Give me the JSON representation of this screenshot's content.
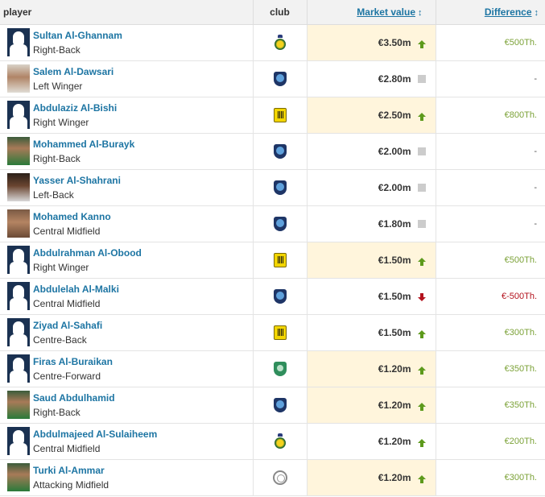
{
  "header": {
    "player": "player",
    "club": "club",
    "market_value": "Market value",
    "difference": "Difference",
    "sort_glyph": "↕"
  },
  "colors": {
    "link": "#1d75a3",
    "highlight": "#fff5dc",
    "up": "#5d9a1c",
    "down": "#b3121d",
    "positive_diff": "#7ca238"
  },
  "rows": [
    {
      "name": "Sultan Al-Ghannam",
      "position": "Right-Back",
      "photo": "silhouette",
      "club": "al-nassr-crest-icon",
      "value": "€3.50m",
      "trend": "up",
      "difference": "€500Th.",
      "diff_type": "pos",
      "highlight": true
    },
    {
      "name": "Salem Al-Dawsari",
      "position": "Left Winger",
      "photo": "light",
      "club": "al-hilal-crest-icon",
      "value": "€2.80m",
      "trend": "same",
      "difference": "-",
      "diff_type": "none",
      "highlight": false
    },
    {
      "name": "Abdulaziz Al-Bishi",
      "position": "Right Winger",
      "photo": "silhouette",
      "club": "al-ittihad-crest-icon",
      "value": "€2.50m",
      "trend": "up",
      "difference": "€800Th.",
      "diff_type": "pos",
      "highlight": true
    },
    {
      "name": "Mohammed Al-Burayk",
      "position": "Right-Back",
      "photo": "green",
      "club": "al-hilal-crest-icon",
      "value": "€2.00m",
      "trend": "same",
      "difference": "-",
      "diff_type": "none",
      "highlight": false
    },
    {
      "name": "Yasser Al-Shahrani",
      "position": "Left-Back",
      "photo": "dark",
      "club": "al-hilal-crest-icon",
      "value": "€2.00m",
      "trend": "same",
      "difference": "-",
      "diff_type": "none",
      "highlight": false
    },
    {
      "name": "Mohamed Kanno",
      "position": "Central Midfield",
      "photo": "real",
      "club": "al-hilal-crest-icon",
      "value": "€1.80m",
      "trend": "same",
      "difference": "-",
      "diff_type": "none",
      "highlight": false
    },
    {
      "name": "Abdulrahman Al-Obood",
      "position": "Right Winger",
      "photo": "silhouette",
      "club": "al-ittihad-crest-icon",
      "value": "€1.50m",
      "trend": "up",
      "difference": "€500Th.",
      "diff_type": "pos",
      "highlight": true
    },
    {
      "name": "Abdulelah Al-Malki",
      "position": "Central Midfield",
      "photo": "silhouette",
      "club": "al-hilal-crest-icon",
      "value": "€1.50m",
      "trend": "down",
      "difference": "€-500Th.",
      "diff_type": "neg",
      "highlight": false
    },
    {
      "name": "Ziyad Al-Sahafi",
      "position": "Centre-Back",
      "photo": "silhouette",
      "club": "al-ittihad-crest-icon",
      "value": "€1.50m",
      "trend": "up",
      "difference": "€300Th.",
      "diff_type": "pos",
      "highlight": false
    },
    {
      "name": "Firas Al-Buraikan",
      "position": "Centre-Forward",
      "photo": "silhouette",
      "club": "al-ahli-crest-icon",
      "value": "€1.20m",
      "trend": "up",
      "difference": "€350Th.",
      "diff_type": "pos",
      "highlight": true
    },
    {
      "name": "Saud Abdulhamid",
      "position": "Right-Back",
      "photo": "green",
      "club": "al-hilal-crest-icon",
      "value": "€1.20m",
      "trend": "up",
      "difference": "€350Th.",
      "diff_type": "pos",
      "highlight": true
    },
    {
      "name": "Abdulmajeed Al-Sulaiheem",
      "position": "Central Midfield",
      "photo": "silhouette",
      "club": "al-nassr-crest-icon",
      "value": "€1.20m",
      "trend": "up",
      "difference": "€200Th.",
      "diff_type": "pos",
      "highlight": false
    },
    {
      "name": "Turki Al-Ammar",
      "position": "Attacking Midfield",
      "photo": "green",
      "club": "al-shabab-crest-icon",
      "value": "€1.20m",
      "trend": "up",
      "difference": "€300Th.",
      "diff_type": "pos",
      "highlight": true
    }
  ]
}
